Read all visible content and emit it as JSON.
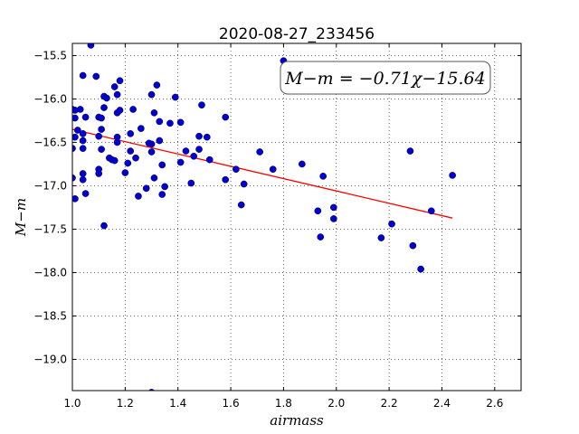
{
  "chart_data": {
    "type": "scatter",
    "title": "2020-08-27_233456",
    "xlabel": "airmass",
    "ylabel": "M−m",
    "xlim": [
      1.0,
      2.7
    ],
    "ylim": [
      -19.36,
      -15.36
    ],
    "y_inverted": true,
    "grid": true,
    "x_ticks": [
      1.0,
      1.2,
      1.4,
      1.6,
      1.8,
      2.0,
      2.2,
      2.4,
      2.6
    ],
    "x_tick_labels": [
      "1.0",
      "1.2",
      "1.4",
      "1.6",
      "1.8",
      "2.0",
      "2.2",
      "2.4",
      "2.6"
    ],
    "y_ticks": [
      -15.5,
      -16.0,
      -16.5,
      -17.0,
      -17.5,
      -18.0,
      -18.5,
      -19.0
    ],
    "y_tick_labels": [
      "−15.5",
      "−16.0",
      "−16.5",
      "−17.0",
      "−17.5",
      "−18.0",
      "−18.5",
      "−19.0"
    ],
    "annotation": "M−m = −0.71χ−15.64",
    "annotation_position": "top-right",
    "fit": {
      "slope": -0.71,
      "intercept": -15.64,
      "x_range": [
        1.0,
        2.44
      ],
      "color": "#ff0000"
    },
    "series": [
      {
        "color": "#0000cc",
        "points": [
          [
            1.0,
            -16.12
          ],
          [
            1.0,
            -16.57
          ],
          [
            1.0,
            -16.91
          ],
          [
            1.01,
            -16.13
          ],
          [
            1.01,
            -16.22
          ],
          [
            1.01,
            -16.44
          ],
          [
            1.01,
            -17.15
          ],
          [
            1.02,
            -16.36
          ],
          [
            1.03,
            -16.12
          ],
          [
            1.04,
            -15.73
          ],
          [
            1.04,
            -16.4
          ],
          [
            1.04,
            -16.48
          ],
          [
            1.04,
            -16.57
          ],
          [
            1.04,
            -16.86
          ],
          [
            1.04,
            -16.93
          ],
          [
            1.05,
            -16.21
          ],
          [
            1.05,
            -17.09
          ],
          [
            1.07,
            -15.38
          ],
          [
            1.09,
            -15.74
          ],
          [
            1.1,
            -16.21
          ],
          [
            1.1,
            -16.43
          ],
          [
            1.1,
            -16.81
          ],
          [
            1.1,
            -16.86
          ],
          [
            1.11,
            -16.22
          ],
          [
            1.11,
            -16.35
          ],
          [
            1.11,
            -16.58
          ],
          [
            1.12,
            -15.97
          ],
          [
            1.12,
            -16.1
          ],
          [
            1.12,
            -17.46
          ],
          [
            1.13,
            -15.99
          ],
          [
            1.14,
            -16.68
          ],
          [
            1.15,
            -16.7
          ],
          [
            1.16,
            -15.86
          ],
          [
            1.16,
            -16.71
          ],
          [
            1.17,
            -15.95
          ],
          [
            1.17,
            -16.16
          ],
          [
            1.17,
            -16.44
          ],
          [
            1.17,
            -16.5
          ],
          [
            1.18,
            -15.79
          ],
          [
            1.18,
            -16.13
          ],
          [
            1.2,
            -16.85
          ],
          [
            1.21,
            -16.74
          ],
          [
            1.22,
            -16.4
          ],
          [
            1.22,
            -16.6
          ],
          [
            1.23,
            -16.12
          ],
          [
            1.24,
            -16.68
          ],
          [
            1.25,
            -17.12
          ],
          [
            1.26,
            -16.34
          ],
          [
            1.28,
            -17.03
          ],
          [
            1.29,
            -16.51
          ],
          [
            1.3,
            -15.95
          ],
          [
            1.3,
            -16.52
          ],
          [
            1.3,
            -16.61
          ],
          [
            1.3,
            -19.38
          ],
          [
            1.31,
            -16.16
          ],
          [
            1.31,
            -16.91
          ],
          [
            1.32,
            -15.84
          ],
          [
            1.33,
            -16.48
          ],
          [
            1.33,
            -16.26
          ],
          [
            1.34,
            -16.76
          ],
          [
            1.34,
            -17.1
          ],
          [
            1.35,
            -17.01
          ],
          [
            1.37,
            -16.28
          ],
          [
            1.39,
            -15.98
          ],
          [
            1.41,
            -16.73
          ],
          [
            1.41,
            -16.27
          ],
          [
            1.43,
            -16.6
          ],
          [
            1.45,
            -16.97
          ],
          [
            1.46,
            -16.66
          ],
          [
            1.48,
            -16.43
          ],
          [
            1.48,
            -16.58
          ],
          [
            1.49,
            -16.07
          ],
          [
            1.51,
            -16.44
          ],
          [
            1.52,
            -16.7
          ],
          [
            1.58,
            -16.93
          ],
          [
            1.58,
            -16.21
          ],
          [
            1.62,
            -16.81
          ],
          [
            1.64,
            -17.22
          ],
          [
            1.65,
            -16.98
          ],
          [
            1.71,
            -16.61
          ],
          [
            1.76,
            -16.81
          ],
          [
            1.8,
            -15.56
          ],
          [
            1.87,
            -16.75
          ],
          [
            1.93,
            -17.29
          ],
          [
            1.94,
            -17.59
          ],
          [
            1.95,
            -16.89
          ],
          [
            1.99,
            -17.25
          ],
          [
            1.99,
            -17.38
          ],
          [
            2.17,
            -17.6
          ],
          [
            2.21,
            -17.44
          ],
          [
            2.28,
            -16.6
          ],
          [
            2.29,
            -17.69
          ],
          [
            2.32,
            -17.96
          ],
          [
            2.36,
            -17.29
          ],
          [
            2.44,
            -16.88
          ]
        ]
      }
    ]
  }
}
